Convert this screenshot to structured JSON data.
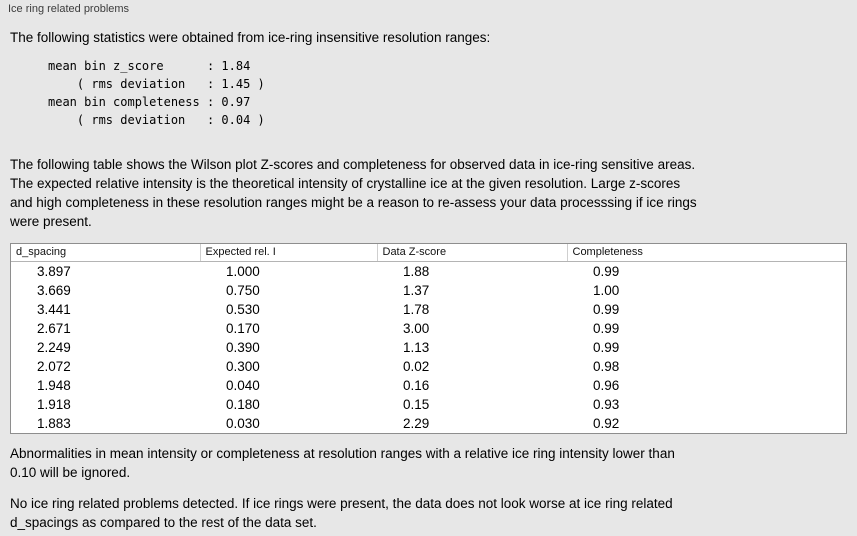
{
  "panel": {
    "title": "Ice ring related problems"
  },
  "stats": {
    "intro": "The following statistics were obtained from ice-ring insensitive resolution ranges:",
    "block": "mean bin z_score      : 1.84\n    ( rms deviation   : 1.45 )\nmean bin completeness : 0.97\n    ( rms deviation   : 0.04 )"
  },
  "description": "The following table shows the Wilson plot Z-scores and completeness for observed data in ice-ring sensitive areas.\nThe expected relative intensity is the theoretical intensity of crystalline ice at the given resolution. Large z-scores\nand high completeness in these resolution ranges might be a reason to re-assess your data processsing if ice rings\nwere present.",
  "table": {
    "headers": [
      "d_spacing",
      "Expected rel. I",
      "Data Z-score",
      "Completeness"
    ],
    "rows": [
      [
        "3.897",
        "1.000",
        "1.88",
        "0.99"
      ],
      [
        "3.669",
        "0.750",
        "1.37",
        "1.00"
      ],
      [
        "3.441",
        "0.530",
        "1.78",
        "0.99"
      ],
      [
        "2.671",
        "0.170",
        "3.00",
        "0.99"
      ],
      [
        "2.249",
        "0.390",
        "1.13",
        "0.99"
      ],
      [
        "2.072",
        "0.300",
        "0.02",
        "0.98"
      ],
      [
        "1.948",
        "0.040",
        "0.16",
        "0.96"
      ],
      [
        "1.918",
        "0.180",
        "0.15",
        "0.93"
      ],
      [
        "1.883",
        "0.030",
        "2.29",
        "0.92"
      ]
    ]
  },
  "notes": {
    "ignore_note": "Abnormalities in mean intensity or completeness at resolution ranges with a relative ice ring intensity lower than\n0.10 will be ignored.",
    "conclusion": "No ice ring related problems detected. If ice rings were present, the data does not look worse at ice ring related\nd_spacings as compared to the rest of the data set."
  }
}
